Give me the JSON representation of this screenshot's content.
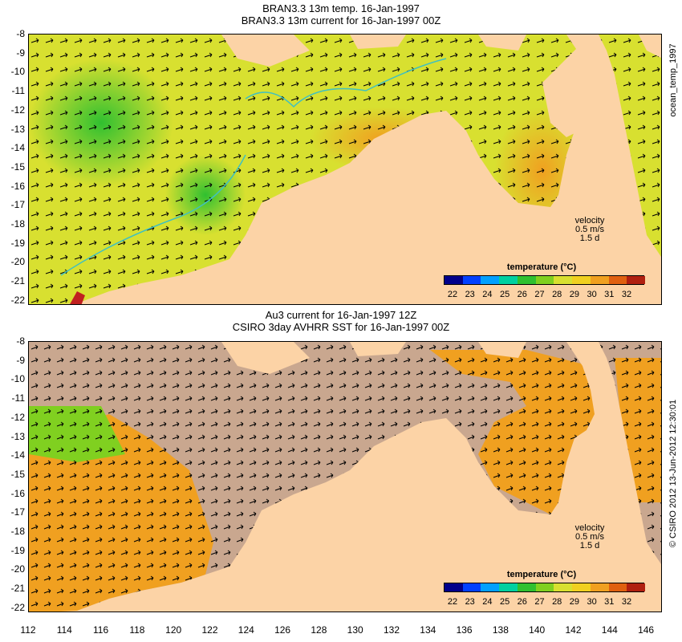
{
  "panels": [
    {
      "title1": "BRAN3.3 13m temp. 16-Jan-1997",
      "title2": "BRAN3.3 13m current for 16-Jan-1997 00Z",
      "velocity_label": "velocity",
      "velocity_scale": "0.5 m/s",
      "velocity_time": "1.5 d",
      "colorbar_title": "temperature (°C)",
      "colorbar_ticks": [
        "22",
        "23",
        "24",
        "25",
        "26",
        "27",
        "28",
        "29",
        "30",
        "31",
        "32"
      ],
      "side_label": "ocean_temp_1997",
      "ocean_color": "#d8e030"
    },
    {
      "title1": "Au3 current for 16-Jan-1997 12Z",
      "title2": "CSIRO 3day AVHRR SST for 16-Jan-1997 00Z",
      "velocity_label": "velocity",
      "velocity_scale": "0.5 m/s",
      "velocity_time": "1.5 d",
      "colorbar_title": "temperature (°C)",
      "colorbar_ticks": [
        "22",
        "23",
        "24",
        "25",
        "26",
        "27",
        "28",
        "29",
        "30",
        "31",
        "32"
      ],
      "side_label": "© CSIRO 2012  13-Jun-2012 12:30:01",
      "ocean_color": "#c9a78f"
    }
  ],
  "y_ticks": [
    "-8",
    "-9",
    "-10",
    "-11",
    "-12",
    "-13",
    "-14",
    "-15",
    "-16",
    "-17",
    "-18",
    "-19",
    "-20",
    "-21",
    "-22"
  ],
  "x_ticks": [
    "112",
    "114",
    "116",
    "118",
    "120",
    "122",
    "124",
    "126",
    "128",
    "130",
    "132",
    "134",
    "136",
    "138",
    "140",
    "142",
    "144",
    "146"
  ],
  "colors": {
    "land": "#fcd3a6",
    "colorbar": [
      "#00008b",
      "#0040ff",
      "#00a0ff",
      "#00d0a0",
      "#30c030",
      "#80d020",
      "#d8e030",
      "#f0d020",
      "#f0a020",
      "#e06010",
      "#b02010"
    ]
  }
}
